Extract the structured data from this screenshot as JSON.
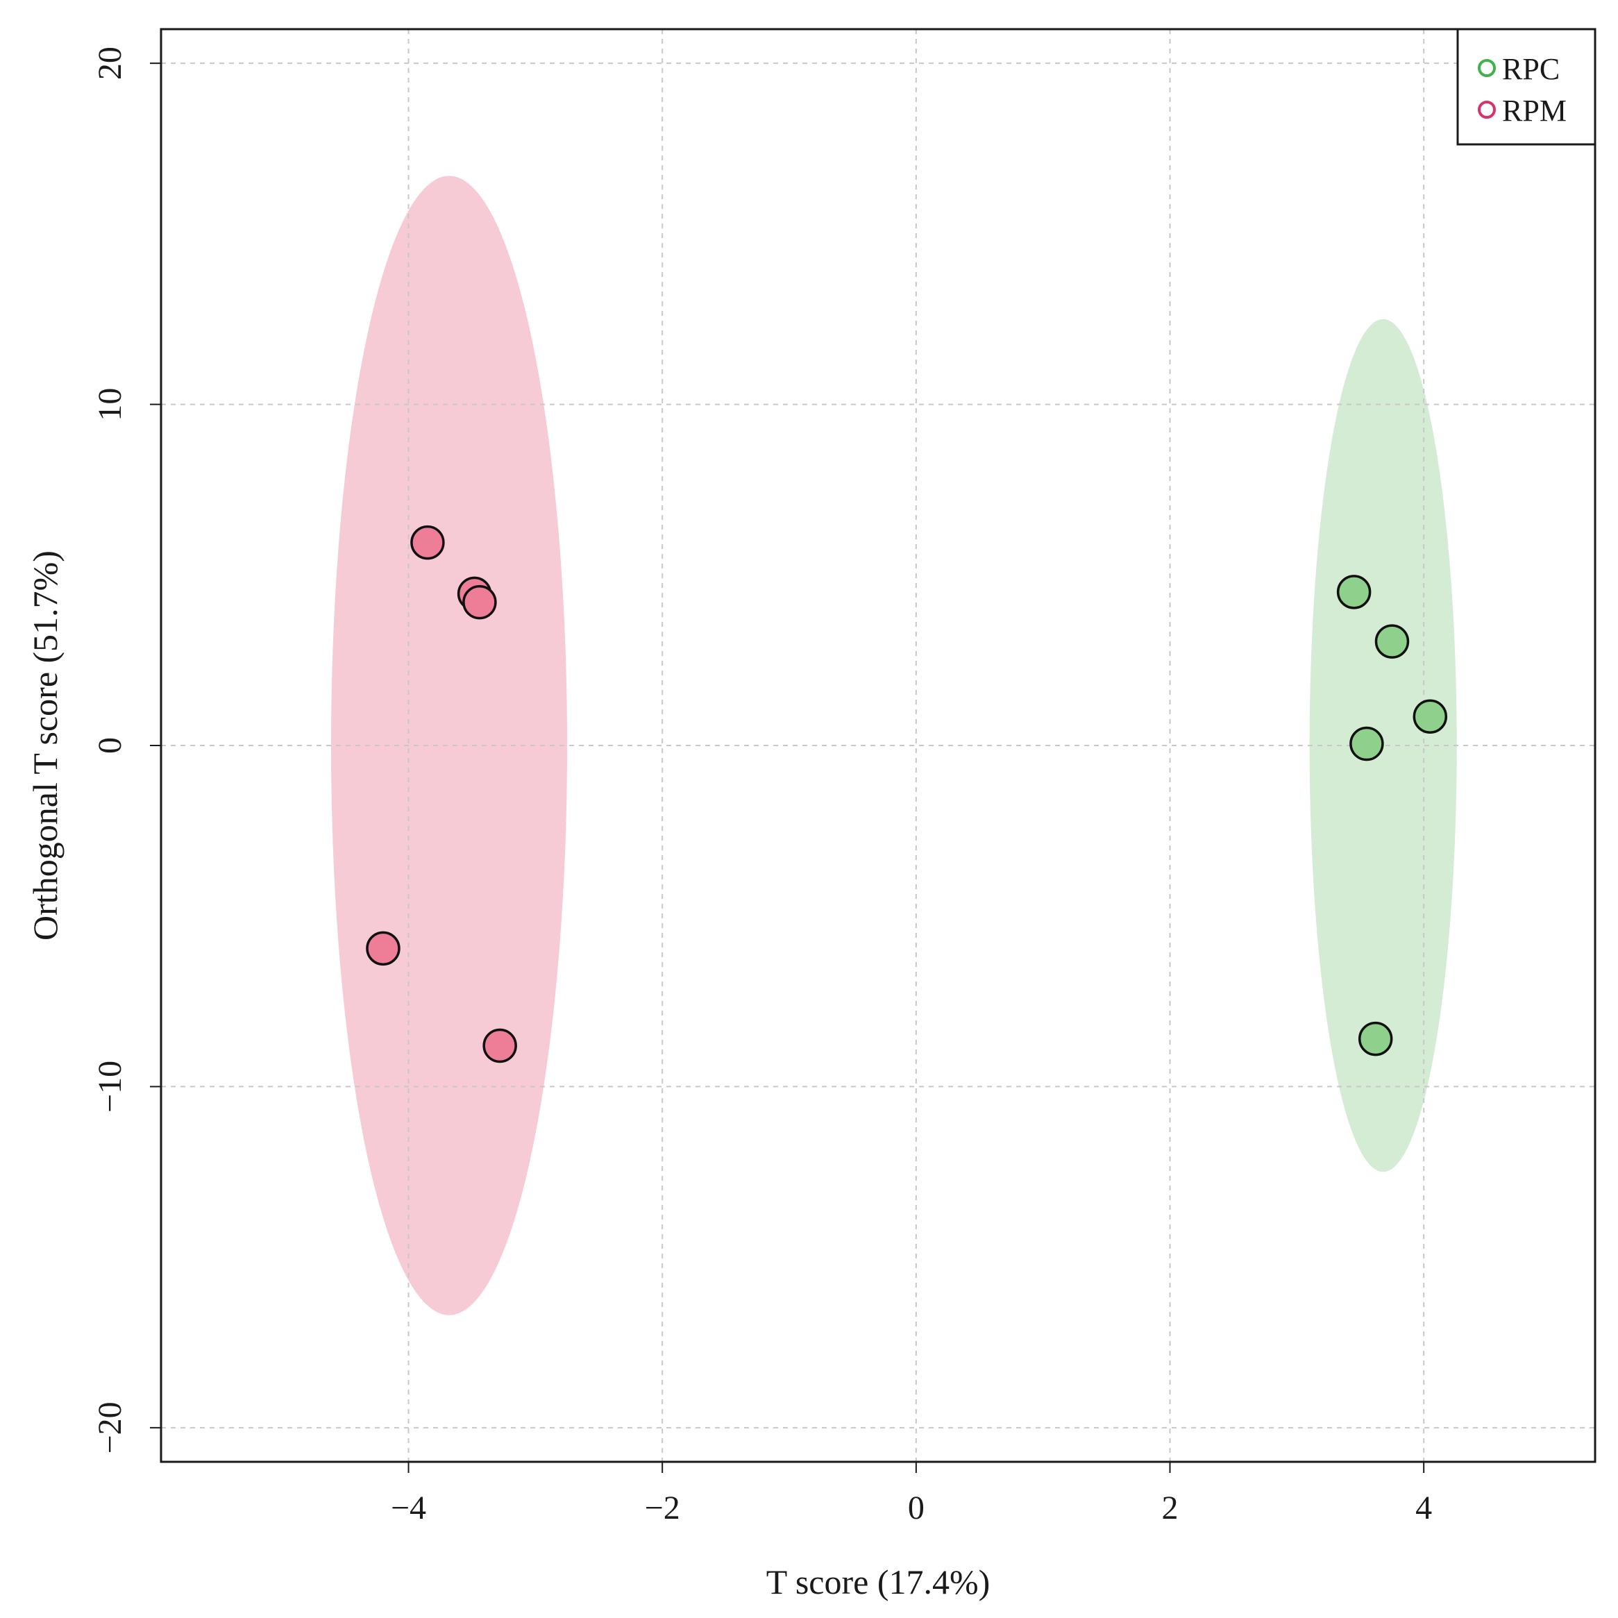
{
  "chart_data": {
    "type": "scatter",
    "title": "",
    "xlabel": "T score (17.4%)",
    "ylabel": "Orthogonal T score (51.7%)",
    "xlim": [
      -5.95,
      5.35
    ],
    "ylim": [
      -21.0,
      21.0
    ],
    "xticks": [
      -4,
      -2,
      0,
      2,
      4
    ],
    "yticks": [
      -20,
      -10,
      0,
      10,
      20
    ],
    "xtick_labels": [
      "−4",
      "−2",
      "0",
      "2",
      "4"
    ],
    "ytick_labels": [
      "−20",
      "−10",
      "0",
      "10",
      "20"
    ],
    "grid": true,
    "legend_position": "top-right",
    "series": [
      {
        "name": "RPC",
        "color": "#3fb24b",
        "fill": "#8fd18c",
        "ellipse_fill": "#d5ecd4",
        "ellipse": {
          "center": [
            3.68,
            0.0
          ],
          "semi_x": 0.58,
          "semi_y": 12.5
        },
        "points": [
          {
            "x": 3.45,
            "y": 4.5
          },
          {
            "x": 3.75,
            "y": 3.05
          },
          {
            "x": 4.05,
            "y": 0.85
          },
          {
            "x": 3.55,
            "y": 0.05
          },
          {
            "x": 3.62,
            "y": -8.6
          }
        ]
      },
      {
        "name": "RPM",
        "color": "#d6336c",
        "fill": "#ee7d98",
        "ellipse_fill": "#f7cbd6",
        "ellipse": {
          "center": [
            -3.68,
            0.0
          ],
          "semi_x": 0.93,
          "semi_y": 16.7
        },
        "points": [
          {
            "x": -3.85,
            "y": 5.95
          },
          {
            "x": -3.48,
            "y": 4.45
          },
          {
            "x": -3.44,
            "y": 4.2
          },
          {
            "x": -4.2,
            "y": -5.95
          },
          {
            "x": -3.28,
            "y": -8.8
          }
        ]
      }
    ]
  }
}
